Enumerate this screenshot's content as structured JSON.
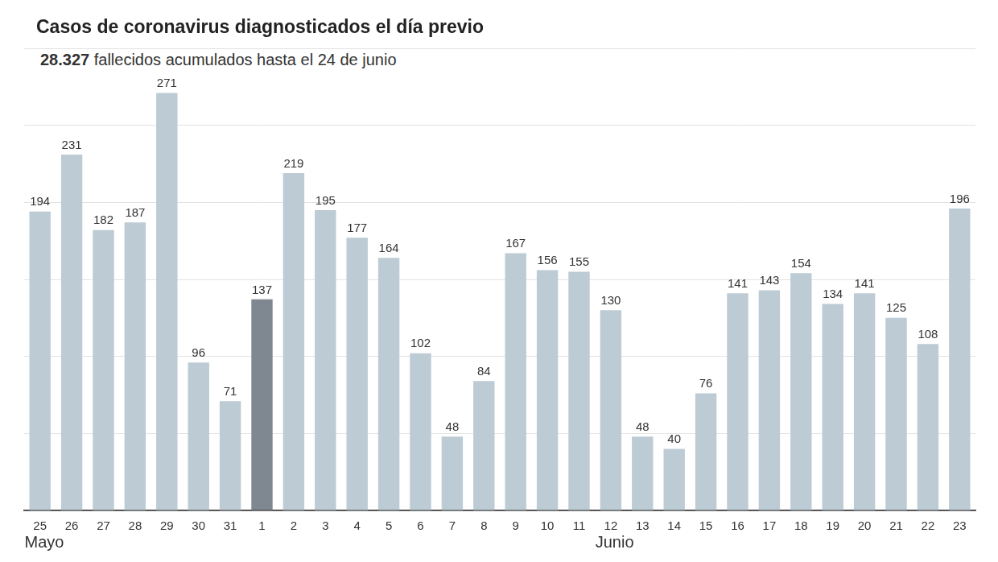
{
  "chart_data": {
    "type": "bar",
    "title": "Casos de coronavirus diagnosticados el día previo",
    "subtitle": "28.327 fallecidos acumulados hasta el 24 de junio",
    "categories": [
      "25",
      "26",
      "27",
      "28",
      "29",
      "30",
      "31",
      "1",
      "2",
      "3",
      "4",
      "5",
      "6",
      "7",
      "8",
      "9",
      "10",
      "11",
      "12",
      "13",
      "14",
      "15",
      "16",
      "17",
      "18",
      "19",
      "20",
      "21",
      "22",
      "23"
    ],
    "values": [
      194,
      231,
      182,
      187,
      271,
      96,
      71,
      137,
      219,
      195,
      177,
      164,
      102,
      48,
      84,
      167,
      156,
      155,
      130,
      48,
      40,
      76,
      141,
      143,
      154,
      134,
      141,
      125,
      108,
      196
    ],
    "colors": [
      "#bccbd4",
      "#bccbd4",
      "#bccbd4",
      "#bccbd4",
      "#bccbd4",
      "#bccbd4",
      "#bccbd4",
      "#7f8790",
      "#bccbd4",
      "#bccbd4",
      "#bccbd4",
      "#bccbd4",
      "#bccbd4",
      "#bccbd4",
      "#bccbd4",
      "#bccbd4",
      "#bccbd4",
      "#bccbd4",
      "#bccbd4",
      "#bccbd4",
      "#bccbd4",
      "#bccbd4",
      "#bccbd4",
      "#bccbd4",
      "#bccbd4",
      "#bccbd4",
      "#bccbd4",
      "#bccbd4",
      "#bccbd4",
      "#bccbd4"
    ],
    "annotations": [
      {
        "text": "Mayo",
        "at": "25"
      },
      {
        "text": "Junio",
        "at": "12"
      }
    ],
    "ylim": [
      0,
      300
    ],
    "yticks": [
      0,
      50,
      100,
      150,
      200,
      250,
      300
    ],
    "grid": true,
    "data_labels": true,
    "tick_labels": "x"
  }
}
